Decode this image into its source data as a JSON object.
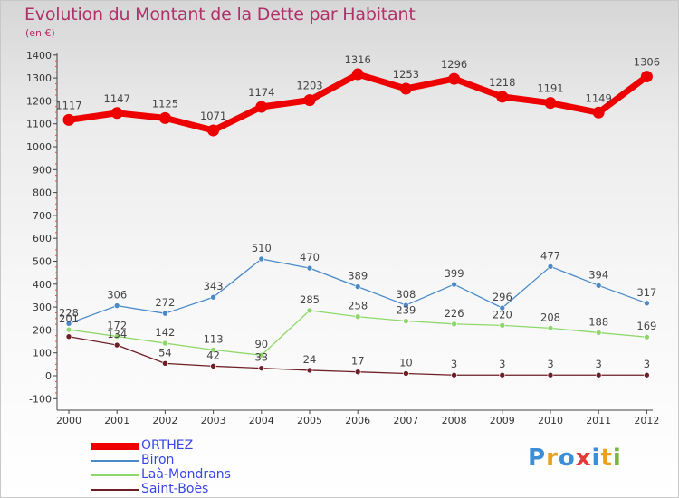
{
  "title": "Evolution du Montant de la Dette par Habitant",
  "unit_label": "(en €)",
  "logo": {
    "text": "Proxiti",
    "letters": [
      "P",
      "r",
      "o",
      "x",
      "i",
      "t",
      "i"
    ],
    "colors": [
      "#3a8fd8",
      "#e8a020",
      "#3a8fd8",
      "#e03a3a",
      "#3a8fd8",
      "#e8a020",
      "#7ab83a"
    ]
  },
  "chart_data": {
    "type": "line",
    "title": "Evolution du Montant de la Dette par Habitant",
    "ylabel": "(en €)",
    "xlabel": "",
    "x": [
      "2000",
      "2001",
      "2002",
      "2003",
      "2004",
      "2005",
      "2006",
      "2007",
      "2008",
      "2009",
      "2010",
      "2011",
      "2012"
    ],
    "ylim": [
      -100,
      1400
    ],
    "yticks": [
      -100,
      0,
      100,
      200,
      300,
      400,
      500,
      600,
      700,
      800,
      900,
      1000,
      1100,
      1200,
      1300,
      1400
    ],
    "grid": false,
    "legend_position": "bottom-left",
    "series": [
      {
        "name": "ORTHEZ",
        "color": "#ee0000",
        "values": [
          1117,
          1147,
          1125,
          1071,
          1174,
          1203,
          1316,
          1253,
          1296,
          1218,
          1191,
          1149,
          1306
        ],
        "labels": [
          "1117",
          "1147",
          "1125",
          "1071",
          "1174",
          "1203",
          "1316",
          "1253",
          "1296",
          "1218",
          "1191",
          "1149",
          "1306"
        ]
      },
      {
        "name": "Biron",
        "color": "#4a8ac8",
        "values": [
          228,
          306,
          272,
          343,
          510,
          470,
          389,
          308,
          399,
          296,
          477,
          394,
          317
        ],
        "labels": [
          "228",
          "306",
          "272",
          "343",
          "510",
          "470",
          "389",
          "308",
          "399",
          "296",
          "477",
          "394",
          "317"
        ]
      },
      {
        "name": "Laà-Mondrans",
        "color": "#8ed86a",
        "values": [
          201,
          172,
          142,
          113,
          90,
          285,
          258,
          239,
          226,
          220,
          208,
          188,
          169
        ],
        "labels": [
          "201",
          "172",
          "142",
          "113",
          "90",
          "285",
          "258",
          "239",
          "226",
          "220",
          "208",
          "188",
          "169"
        ]
      },
      {
        "name": "Saint-Boès",
        "color": "#6e1f26",
        "values": [
          171,
          134,
          54,
          42,
          33,
          24,
          17,
          10,
          3,
          3,
          3,
          3,
          3
        ],
        "labels": [
          "",
          "134",
          "54",
          "42",
          "33",
          "24",
          "17",
          "10",
          "3",
          "3",
          "3",
          "3",
          "3"
        ]
      }
    ]
  }
}
